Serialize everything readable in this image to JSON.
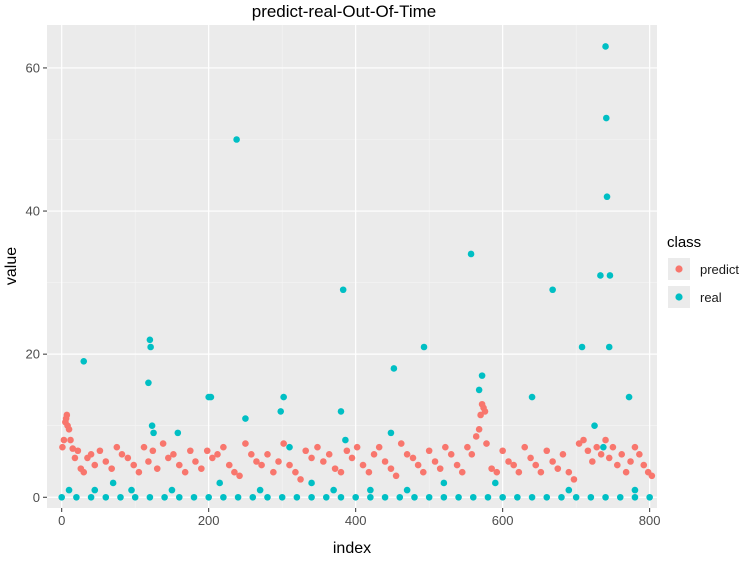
{
  "chart_data": {
    "type": "scatter",
    "title": "predict-real-Out-Of-Time",
    "xlabel": "index",
    "ylabel": "value",
    "xlim": [
      -20,
      810
    ],
    "ylim": [
      -1.5,
      66
    ],
    "x_ticks": [
      0,
      200,
      400,
      600,
      800
    ],
    "y_ticks": [
      0,
      20,
      40,
      60
    ],
    "grid": true,
    "legend": {
      "title": "class",
      "placement": "right"
    },
    "series": [
      {
        "name": "predict",
        "color": "#F8766D",
        "points": [
          [
            1,
            7.0
          ],
          [
            3,
            8.0
          ],
          [
            5,
            10.5
          ],
          [
            6,
            11.0
          ],
          [
            7,
            11.5
          ],
          [
            8,
            10.0
          ],
          [
            10,
            9.5
          ],
          [
            12,
            8.0
          ],
          [
            15,
            6.8
          ],
          [
            18,
            5.5
          ],
          [
            22,
            6.5
          ],
          [
            26,
            4.0
          ],
          [
            30,
            3.5
          ],
          [
            35,
            5.5
          ],
          [
            40,
            6.0
          ],
          [
            45,
            4.5
          ],
          [
            52,
            6.5
          ],
          [
            60,
            5.0
          ],
          [
            68,
            4.0
          ],
          [
            75,
            7.0
          ],
          [
            82,
            6.0
          ],
          [
            90,
            5.5
          ],
          [
            98,
            4.5
          ],
          [
            105,
            3.5
          ],
          [
            112,
            7.0
          ],
          [
            118,
            5.0
          ],
          [
            124,
            6.5
          ],
          [
            130,
            4.0
          ],
          [
            138,
            7.5
          ],
          [
            145,
            5.5
          ],
          [
            152,
            6.0
          ],
          [
            160,
            4.5
          ],
          [
            168,
            3.5
          ],
          [
            175,
            6.5
          ],
          [
            182,
            5.0
          ],
          [
            190,
            4.0
          ],
          [
            198,
            6.5
          ],
          [
            205,
            5.5
          ],
          [
            212,
            6.0
          ],
          [
            220,
            7.0
          ],
          [
            228,
            4.5
          ],
          [
            235,
            3.5
          ],
          [
            242,
            3.0
          ],
          [
            250,
            7.5
          ],
          [
            258,
            6.0
          ],
          [
            265,
            5.0
          ],
          [
            272,
            4.5
          ],
          [
            280,
            6.0
          ],
          [
            288,
            3.5
          ],
          [
            295,
            5.0
          ],
          [
            302,
            7.5
          ],
          [
            310,
            4.5
          ],
          [
            318,
            3.5
          ],
          [
            325,
            2.5
          ],
          [
            332,
            6.5
          ],
          [
            340,
            5.5
          ],
          [
            348,
            7.0
          ],
          [
            356,
            5.0
          ],
          [
            364,
            6.0
          ],
          [
            372,
            4.0
          ],
          [
            380,
            3.5
          ],
          [
            388,
            6.5
          ],
          [
            395,
            5.5
          ],
          [
            402,
            7.0
          ],
          [
            410,
            4.5
          ],
          [
            418,
            3.5
          ],
          [
            425,
            6.0
          ],
          [
            432,
            7.0
          ],
          [
            440,
            5.0
          ],
          [
            448,
            4.0
          ],
          [
            455,
            3.0
          ],
          [
            462,
            7.5
          ],
          [
            470,
            6.0
          ],
          [
            478,
            5.5
          ],
          [
            485,
            4.5
          ],
          [
            492,
            3.5
          ],
          [
            500,
            6.5
          ],
          [
            508,
            5.0
          ],
          [
            515,
            4.0
          ],
          [
            522,
            7.0
          ],
          [
            530,
            6.0
          ],
          [
            538,
            4.5
          ],
          [
            545,
            3.5
          ],
          [
            552,
            7.0
          ],
          [
            558,
            6.0
          ],
          [
            564,
            8.5
          ],
          [
            568,
            9.5
          ],
          [
            570,
            11.5
          ],
          [
            572,
            13.0
          ],
          [
            574,
            12.5
          ],
          [
            576,
            12.0
          ],
          [
            578,
            7.5
          ],
          [
            585,
            4.0
          ],
          [
            592,
            3.5
          ],
          [
            600,
            6.5
          ],
          [
            608,
            5.0
          ],
          [
            615,
            4.5
          ],
          [
            622,
            3.5
          ],
          [
            630,
            7.0
          ],
          [
            638,
            5.5
          ],
          [
            645,
            4.5
          ],
          [
            652,
            3.5
          ],
          [
            660,
            6.5
          ],
          [
            668,
            5.0
          ],
          [
            675,
            4.0
          ],
          [
            682,
            6.0
          ],
          [
            690,
            3.5
          ],
          [
            697,
            2.5
          ],
          [
            704,
            7.5
          ],
          [
            710,
            8.0
          ],
          [
            716,
            6.5
          ],
          [
            722,
            5.0
          ],
          [
            728,
            7.0
          ],
          [
            734,
            6.0
          ],
          [
            740,
            8.0
          ],
          [
            745,
            5.5
          ],
          [
            750,
            7.0
          ],
          [
            756,
            4.5
          ],
          [
            762,
            6.0
          ],
          [
            768,
            3.5
          ],
          [
            774,
            5.0
          ],
          [
            780,
            7.0
          ],
          [
            786,
            6.0
          ],
          [
            792,
            4.5
          ],
          [
            798,
            3.5
          ],
          [
            803,
            3.0
          ]
        ]
      },
      {
        "name": "real",
        "color": "#00BFC4",
        "points": [
          [
            0,
            0
          ],
          [
            20,
            0
          ],
          [
            40,
            0
          ],
          [
            60,
            0
          ],
          [
            80,
            0
          ],
          [
            100,
            0
          ],
          [
            120,
            0
          ],
          [
            140,
            0
          ],
          [
            160,
            0
          ],
          [
            180,
            0
          ],
          [
            200,
            0
          ],
          [
            220,
            0
          ],
          [
            240,
            0
          ],
          [
            260,
            0
          ],
          [
            280,
            0
          ],
          [
            300,
            0
          ],
          [
            320,
            0
          ],
          [
            340,
            0
          ],
          [
            360,
            0
          ],
          [
            380,
            0
          ],
          [
            400,
            0
          ],
          [
            420,
            0
          ],
          [
            440,
            0
          ],
          [
            460,
            0
          ],
          [
            480,
            0
          ],
          [
            500,
            0
          ],
          [
            520,
            0
          ],
          [
            540,
            0
          ],
          [
            560,
            0
          ],
          [
            580,
            0
          ],
          [
            600,
            0
          ],
          [
            620,
            0
          ],
          [
            640,
            0
          ],
          [
            660,
            0
          ],
          [
            680,
            0
          ],
          [
            700,
            0
          ],
          [
            720,
            0
          ],
          [
            740,
            0
          ],
          [
            760,
            0
          ],
          [
            780,
            0
          ],
          [
            800,
            0
          ],
          [
            10,
            1
          ],
          [
            30,
            19
          ],
          [
            45,
            1
          ],
          [
            70,
            2
          ],
          [
            95,
            1
          ],
          [
            118,
            16
          ],
          [
            120,
            22
          ],
          [
            121,
            21
          ],
          [
            123,
            10
          ],
          [
            125,
            9
          ],
          [
            150,
            1
          ],
          [
            158,
            9
          ],
          [
            200,
            14
          ],
          [
            203,
            14
          ],
          [
            215,
            2
          ],
          [
            238,
            50
          ],
          [
            250,
            11
          ],
          [
            270,
            1
          ],
          [
            298,
            12
          ],
          [
            302,
            14
          ],
          [
            310,
            7
          ],
          [
            340,
            2
          ],
          [
            370,
            1
          ],
          [
            380,
            12
          ],
          [
            383,
            29
          ],
          [
            386,
            8
          ],
          [
            420,
            1
          ],
          [
            448,
            9
          ],
          [
            452,
            18
          ],
          [
            470,
            1
          ],
          [
            493,
            21
          ],
          [
            520,
            2
          ],
          [
            557,
            34
          ],
          [
            568,
            15
          ],
          [
            572,
            17
          ],
          [
            590,
            2
          ],
          [
            640,
            14
          ],
          [
            668,
            29
          ],
          [
            690,
            1
          ],
          [
            708,
            21
          ],
          [
            725,
            10
          ],
          [
            733,
            31
          ],
          [
            737,
            7
          ],
          [
            740,
            63
          ],
          [
            741,
            53
          ],
          [
            742,
            42
          ],
          [
            745,
            21
          ],
          [
            746,
            31
          ],
          [
            772,
            14
          ],
          [
            780,
            1
          ]
        ]
      }
    ]
  }
}
